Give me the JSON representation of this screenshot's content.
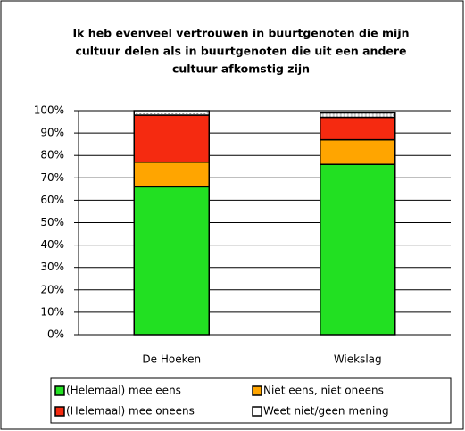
{
  "chart_data": {
    "type": "stacked_bar",
    "title": [
      "Ik heb evenveel vertrouwen in buurtgenoten die mijn",
      "cultuur delen als in buurtgenoten die uit een andere",
      "cultuur afkomstig zijn"
    ],
    "categories": [
      "De Hoeken",
      "Wiekslag"
    ],
    "series": [
      {
        "name": "(Helemaal) mee eens",
        "color": "#22e022",
        "values": [
          66,
          76
        ]
      },
      {
        "name": "Niet eens, niet oneens",
        "color": "#ffa500",
        "values": [
          11,
          11
        ]
      },
      {
        "name": "(Helemaal) mee oneens",
        "color": "#f52a10",
        "values": [
          21,
          10
        ]
      },
      {
        "name": "Weet niet/geen mening",
        "color": "#ffffff",
        "values": [
          2,
          2
        ]
      }
    ],
    "ylim": [
      0,
      100
    ],
    "yticks": [
      {
        "value": 0,
        "label": "0%"
      },
      {
        "value": 10,
        "label": "10%"
      },
      {
        "value": 20,
        "label": "20%"
      },
      {
        "value": 30,
        "label": "30%"
      },
      {
        "value": 40,
        "label": "40%"
      },
      {
        "value": 50,
        "label": "50%"
      },
      {
        "value": 60,
        "label": "60%"
      },
      {
        "value": 70,
        "label": "70%"
      },
      {
        "value": 80,
        "label": "80%"
      },
      {
        "value": 90,
        "label": "90%"
      },
      {
        "value": 100,
        "label": "100%"
      }
    ],
    "grid": true,
    "legend": "bottom"
  }
}
